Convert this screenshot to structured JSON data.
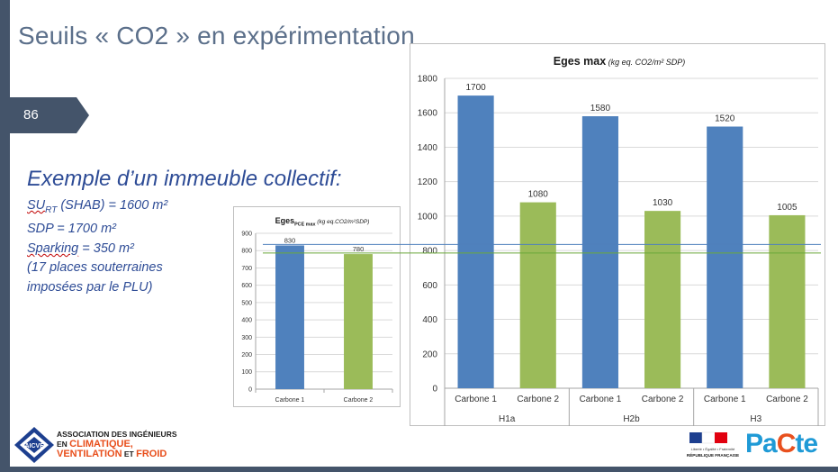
{
  "slide": {
    "title": "Seuils « CO2 » en expérimentation",
    "page_number": "86",
    "example_heading": "Exemple d’un immeuble collectif:",
    "info_lines": {
      "surt_label": "SU",
      "surt_sub": "RT",
      "surt_value": " (SHAB) = 1600 m²",
      "sdp": "SDP = 1700 m²",
      "sparking_label": "Sparking",
      "sparking_value": " = 350 m²",
      "places1": "(17 places souterraines",
      "places2": "imposées par le PLU)"
    },
    "accent_colors": {
      "blue": "#4f81bd",
      "green": "#9bbb59",
      "text_blue": "#2e4c96",
      "sidebar": "#44546a"
    }
  },
  "logos": {
    "aicvf_abbr": "AICVF",
    "aicvf_line1": "ASSOCIATION DES INGÉNIEURS",
    "aicvf_line2_small": "EN ",
    "aicvf_line2_big": "CLIMATIQUE,",
    "aicvf_line3_big": "VENTILATION",
    "aicvf_line3_small": " ET ",
    "aicvf_line3_big2": "FROID",
    "rf_motto": "Liberté • Égalité • Fraternité",
    "rf_name": "RÉPUBLIQUE FRANÇAISE",
    "pacte_pa": "Pa",
    "pacte_c": "C",
    "pacte_te": "te"
  },
  "chart_data": [
    {
      "type": "bar",
      "title_main": "Eges",
      "title_sub": "PCE max",
      "title_unit": "(kg eq.CO2/m²SDP)",
      "categories": [
        "Carbone 1",
        "Carbone 2"
      ],
      "values": [
        830,
        780
      ],
      "data_labels": [
        "830",
        "780"
      ],
      "colors": [
        "#4f81bd",
        "#9bbb59"
      ],
      "ylim": [
        0,
        900
      ],
      "yticks": [
        0,
        100,
        200,
        300,
        400,
        500,
        600,
        700,
        800,
        900
      ],
      "grid": true
    },
    {
      "type": "bar",
      "title_main": "Eges max",
      "title_unit": "(kg eq. CO2/m² SDP)",
      "categories": [
        "Carbone 1",
        "Carbone 2",
        "Carbone 1",
        "Carbone 2",
        "Carbone 1",
        "Carbone 2"
      ],
      "groups": [
        "H1a",
        "H2b",
        "H3"
      ],
      "values": [
        1700,
        1080,
        1580,
        1030,
        1520,
        1005
      ],
      "data_labels": [
        "1700",
        "1080",
        "1580",
        "1030",
        "1520",
        "1005"
      ],
      "colors": [
        "#4f81bd",
        "#9bbb59",
        "#4f81bd",
        "#9bbb59",
        "#4f81bd",
        "#9bbb59"
      ],
      "ylim": [
        0,
        1800
      ],
      "yticks": [
        0,
        200,
        400,
        600,
        800,
        1000,
        1200,
        1400,
        1600,
        1800
      ],
      "grid": true
    }
  ],
  "reference_lines": [
    {
      "value": 830,
      "color": "#4f81bd"
    },
    {
      "value": 780,
      "color": "#6aa83a"
    }
  ]
}
